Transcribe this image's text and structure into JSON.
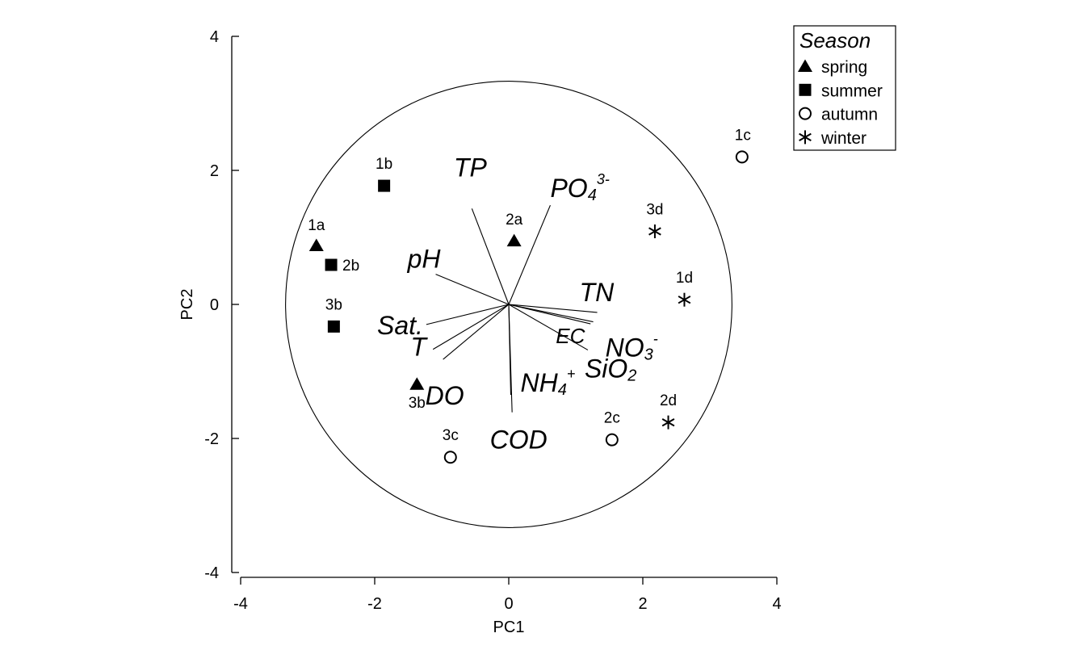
{
  "chart_data": {
    "type": "scatter",
    "subtype": "pca-biplot",
    "xlabel": "PC1",
    "ylabel": "PC2",
    "xlim": [
      -4,
      4
    ],
    "ylim": [
      -4,
      4
    ],
    "xticks": [
      "-4",
      "-2",
      "0",
      "2",
      "4"
    ],
    "yticks": [
      "-4",
      "-2",
      "0",
      "2",
      "4"
    ],
    "grid": false,
    "correlation_circle_radius": 3.33,
    "legend": {
      "title": "Season",
      "position": "top-right",
      "items": [
        {
          "label": "spring",
          "marker": "filled-triangle"
        },
        {
          "label": "summer",
          "marker": "filled-square"
        },
        {
          "label": "autumn",
          "marker": "open-circle"
        },
        {
          "label": "winter",
          "marker": "asterisk"
        }
      ]
    },
    "points": [
      {
        "label": "1a",
        "season": "spring",
        "x": -2.87,
        "y": 0.88
      },
      {
        "label": "2a",
        "season": "spring",
        "x": 0.08,
        "y": 0.95
      },
      {
        "label": "3b",
        "season": "spring",
        "x": -1.37,
        "y": -1.19
      },
      {
        "label": "1b",
        "season": "summer",
        "x": -1.86,
        "y": 1.77
      },
      {
        "label": "2b",
        "season": "summer",
        "x": -2.65,
        "y": 0.59
      },
      {
        "label": "3b",
        "season": "summer",
        "x": -2.61,
        "y": -0.33
      },
      {
        "label": "1c",
        "season": "autumn",
        "x": 3.48,
        "y": 2.2
      },
      {
        "label": "2c",
        "season": "autumn",
        "x": 1.54,
        "y": -2.02
      },
      {
        "label": "3c",
        "season": "autumn",
        "x": -0.87,
        "y": -2.28
      },
      {
        "label": "1d",
        "season": "winter",
        "x": 2.62,
        "y": 0.07
      },
      {
        "label": "2d",
        "season": "winter",
        "x": 2.38,
        "y": -1.76
      },
      {
        "label": "3d",
        "season": "winter",
        "x": 2.18,
        "y": 1.09
      }
    ],
    "loadings": [
      {
        "name": "TP",
        "base": "TP",
        "x": -0.55,
        "y": 1.43
      },
      {
        "name": "PO43-",
        "base": "PO",
        "sub": "4",
        "sup": "3-",
        "x": 0.62,
        "y": 1.48
      },
      {
        "name": "pH",
        "base": "pH",
        "x": -1.09,
        "y": 0.45
      },
      {
        "name": "TN",
        "base": "TN",
        "x": 1.32,
        "y": -0.12
      },
      {
        "name": "Sat.",
        "base": "Sat.",
        "x": -1.23,
        "y": -0.3
      },
      {
        "name": "EC",
        "base": "EC",
        "x": 1.22,
        "y": -0.29
      },
      {
        "name": "NO3-",
        "base": "NO",
        "sub": "3",
        "sup": "-",
        "x": 1.26,
        "y": -0.26
      },
      {
        "name": "T",
        "base": "T",
        "x": -1.13,
        "y": -0.67
      },
      {
        "name": "SiO2",
        "base": "SiO",
        "sub": "2",
        "x": 1.18,
        "y": -0.68
      },
      {
        "name": "DO",
        "base": "DO",
        "x": -0.98,
        "y": -0.82
      },
      {
        "name": "NH4+",
        "base": "NH",
        "sub": "4",
        "sup": "+",
        "x": 0.03,
        "y": -1.35
      },
      {
        "name": "COD",
        "base": "COD",
        "x": 0.05,
        "y": -1.61
      }
    ]
  }
}
